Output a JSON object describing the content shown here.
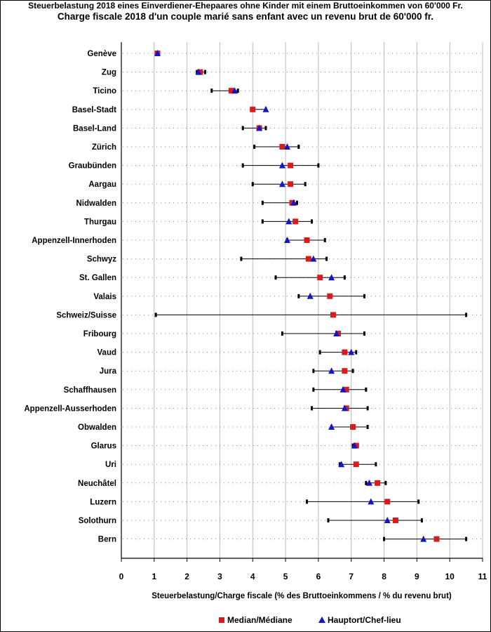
{
  "header": {
    "title_de": "Steuerbelastung 2018 eines Einverdiener-Ehepaares ohne Kinder mit einem Bruttoeinkommen von 60'000 Fr.",
    "title_fr": "Charge fiscale 2018 d'un couple marié sans enfant avec un revenu brut de 60'000 fr."
  },
  "legend": {
    "median_label": "Median/Médiane",
    "capital_label": "Hauptort/Chef-lieu"
  },
  "colors": {
    "median": "#d81c1c",
    "capital": "#1414c8",
    "range": "#000000",
    "grid": "#bbbbbb",
    "dotted": "#888888"
  },
  "chart_data": {
    "type": "range-dot",
    "title": "Charge fiscale 2018 d'un couple marié sans enfant avec un revenu brut de 60'000 fr.",
    "xlabel": "Steuerbelastung/Charge fiscale (% des Bruttoeinkommens / % du revenu brut)",
    "ylabel": "",
    "xlim": [
      0,
      11
    ],
    "xticks": [
      0,
      1,
      2,
      3,
      4,
      5,
      6,
      7,
      8,
      9,
      10,
      11
    ],
    "grid": true,
    "legend_position": "bottom",
    "rows": [
      {
        "canton": "Genève",
        "min": 1.05,
        "max": 1.15,
        "median": 1.1,
        "capital": 1.1
      },
      {
        "canton": "Zug",
        "min": 2.3,
        "max": 2.55,
        "median": 2.4,
        "capital": 2.35
      },
      {
        "canton": "Ticino",
        "min": 2.75,
        "max": 3.55,
        "median": 3.35,
        "capital": 3.45
      },
      {
        "canton": "Basel-Stadt",
        "min": 4.0,
        "max": 4.4,
        "median": 4.0,
        "capital": 4.4
      },
      {
        "canton": "Basel-Land",
        "min": 3.7,
        "max": 4.4,
        "median": 4.2,
        "capital": 4.2
      },
      {
        "canton": "Zürich",
        "min": 4.05,
        "max": 5.4,
        "median": 4.9,
        "capital": 5.05
      },
      {
        "canton": "Graubünden",
        "min": 3.7,
        "max": 6.0,
        "median": 5.15,
        "capital": 4.9
      },
      {
        "canton": "Aargau",
        "min": 4.0,
        "max": 5.6,
        "median": 5.15,
        "capital": 4.9
      },
      {
        "canton": "Nidwalden",
        "min": 4.3,
        "max": 5.35,
        "median": 5.2,
        "capital": 5.25
      },
      {
        "canton": "Thurgau",
        "min": 4.3,
        "max": 5.8,
        "median": 5.3,
        "capital": 5.1
      },
      {
        "canton": "Appenzell-Innerhoden",
        "min": 5.05,
        "max": 6.2,
        "median": 5.65,
        "capital": 5.05
      },
      {
        "canton": "Schwyz",
        "min": 3.65,
        "max": 6.25,
        "median": 5.7,
        "capital": 5.85
      },
      {
        "canton": "St. Gallen",
        "min": 4.7,
        "max": 6.8,
        "median": 6.05,
        "capital": 6.4
      },
      {
        "canton": "Valais",
        "min": 5.4,
        "max": 7.4,
        "median": 6.35,
        "capital": 5.75
      },
      {
        "canton": "Schweiz/Suisse",
        "min": 1.05,
        "max": 10.5,
        "median": 6.45,
        "capital": null
      },
      {
        "canton": "Fribourg",
        "min": 4.9,
        "max": 7.4,
        "median": 6.6,
        "capital": 6.55
      },
      {
        "canton": "Vaud",
        "min": 6.05,
        "max": 7.15,
        "median": 6.8,
        "capital": 7.0
      },
      {
        "canton": "Jura",
        "min": 5.85,
        "max": 7.05,
        "median": 6.8,
        "capital": 6.4
      },
      {
        "canton": "Schaffhausen",
        "min": 5.85,
        "max": 7.45,
        "median": 6.85,
        "capital": 6.75
      },
      {
        "canton": "Appenzell-Ausserhoden",
        "min": 5.8,
        "max": 7.5,
        "median": 6.85,
        "capital": 6.8
      },
      {
        "canton": "Obwalden",
        "min": 6.4,
        "max": 7.5,
        "median": 7.05,
        "capital": 6.4
      },
      {
        "canton": "Glarus",
        "min": 7.05,
        "max": 7.2,
        "median": 7.15,
        "capital": 7.1
      },
      {
        "canton": "Uri",
        "min": 6.65,
        "max": 7.75,
        "median": 7.15,
        "capital": 6.7
      },
      {
        "canton": "Neuchâtel",
        "min": 7.45,
        "max": 8.05,
        "median": 7.8,
        "capital": 7.55
      },
      {
        "canton": "Luzern",
        "min": 5.65,
        "max": 9.05,
        "median": 8.1,
        "capital": 7.6
      },
      {
        "canton": "Solothurn",
        "min": 6.3,
        "max": 9.15,
        "median": 8.35,
        "capital": 8.1
      },
      {
        "canton": "Bern",
        "min": 8.0,
        "max": 10.5,
        "median": 9.6,
        "capital": 9.2
      }
    ]
  }
}
